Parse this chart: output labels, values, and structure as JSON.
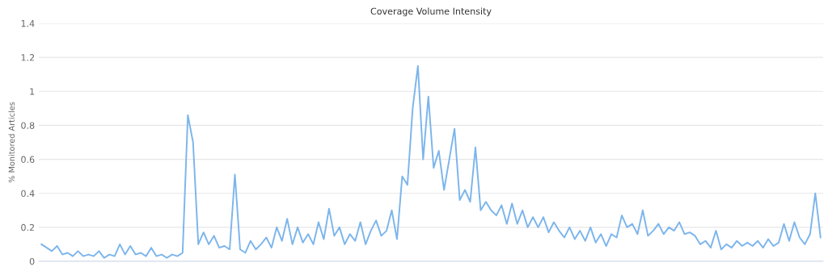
{
  "chart_data": {
    "type": "line",
    "title": "Coverage Volume Intensity",
    "ylabel": "% Monitored Articles",
    "categories": [
      null,
      null,
      null,
      null,
      null,
      null,
      null,
      null,
      null,
      null,
      null,
      null,
      null,
      null,
      null,
      null,
      null,
      null,
      null,
      null,
      null,
      null,
      null,
      null,
      null,
      null,
      null,
      null,
      null,
      null,
      null,
      null,
      null,
      null,
      null,
      null,
      null,
      null,
      null,
      null,
      null,
      null,
      null,
      null,
      null,
      null,
      null,
      null,
      null,
      null,
      null,
      null,
      null,
      null,
      null,
      null,
      null,
      null,
      null,
      null,
      null,
      null,
      null,
      null,
      null,
      null,
      null,
      null,
      null,
      null,
      null,
      null,
      null,
      null,
      null,
      null,
      null,
      null,
      null,
      null,
      null,
      null,
      null,
      null,
      null,
      null,
      null,
      null,
      null,
      null,
      null,
      null,
      null,
      null,
      null,
      null,
      null,
      null,
      null,
      null,
      null,
      null,
      null,
      null,
      null,
      null,
      null,
      null,
      null,
      null,
      null,
      null,
      null,
      null,
      null,
      null,
      null,
      null,
      null,
      null,
      null,
      null,
      null,
      null,
      null,
      null,
      null,
      null,
      null,
      null,
      null,
      null,
      null,
      null,
      null,
      null,
      null,
      null,
      null,
      null,
      null,
      null,
      null,
      null,
      null,
      null,
      null,
      null,
      null,
      null
    ],
    "series": [
      {
        "color": "#7cb5ec",
        "values": [
          0.1,
          0.08,
          0.06,
          0.09,
          0.04,
          0.05,
          0.03,
          0.06,
          0.03,
          0.04,
          0.03,
          0.06,
          0.02,
          0.04,
          0.03,
          0.1,
          0.04,
          0.09,
          0.04,
          0.05,
          0.03,
          0.08,
          0.03,
          0.04,
          0.02,
          0.04,
          0.03,
          0.05,
          0.86,
          0.7,
          0.1,
          0.17,
          0.1,
          0.15,
          0.08,
          0.09,
          0.07,
          0.51,
          0.07,
          0.05,
          0.12,
          0.07,
          0.1,
          0.14,
          0.08,
          0.2,
          0.12,
          0.25,
          0.1,
          0.2,
          0.11,
          0.16,
          0.1,
          0.23,
          0.13,
          0.31,
          0.15,
          0.2,
          0.1,
          0.16,
          0.12,
          0.23,
          0.1,
          0.18,
          0.24,
          0.15,
          0.18,
          0.3,
          0.13,
          0.5,
          0.45,
          0.9,
          1.15,
          0.6,
          0.97,
          0.55,
          0.65,
          0.42,
          0.6,
          0.78,
          0.36,
          0.42,
          0.35,
          0.67,
          0.3,
          0.35,
          0.3,
          0.27,
          0.33,
          0.22,
          0.34,
          0.22,
          0.3,
          0.2,
          0.26,
          0.2,
          0.26,
          0.17,
          0.23,
          0.18,
          0.14,
          0.2,
          0.13,
          0.18,
          0.12,
          0.2,
          0.11,
          0.16,
          0.09,
          0.16,
          0.14,
          0.27,
          0.2,
          0.22,
          0.16,
          0.3,
          0.15,
          0.18,
          0.22,
          0.16,
          0.2,
          0.18,
          0.23,
          0.16,
          0.17,
          0.15,
          0.1,
          0.12,
          0.08,
          0.18,
          0.07,
          0.1,
          0.08,
          0.12,
          0.09,
          0.11,
          0.09,
          0.12,
          0.08,
          0.13,
          0.09,
          0.11,
          0.22,
          0.12,
          0.23,
          0.14,
          0.1,
          0.16,
          0.4,
          0.14
        ]
      }
    ],
    "ylim": [
      0,
      1.4
    ],
    "yticks": [
      0,
      0.2,
      0.4,
      0.6,
      0.8,
      1,
      1.2,
      1.4
    ],
    "grid": "y",
    "tick_labels": "y",
    "marker": "none",
    "line_style": "solid"
  }
}
